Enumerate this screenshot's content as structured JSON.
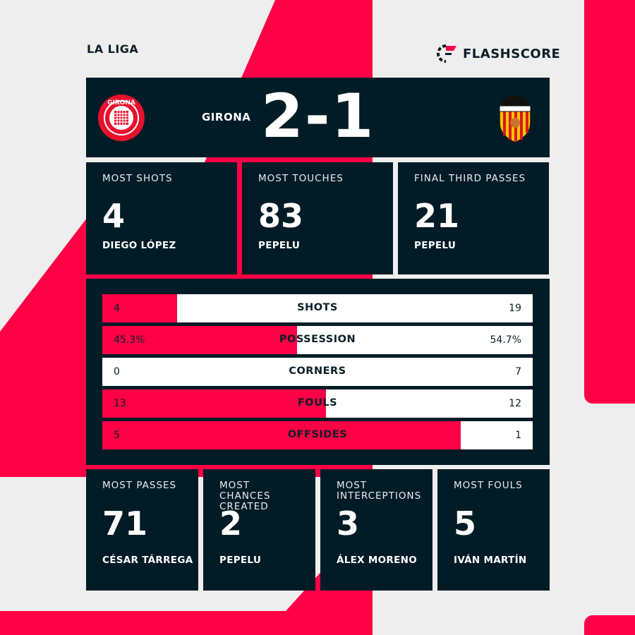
{
  "league": "LA LIGA",
  "brand": {
    "name": "FLASHSCORE",
    "icon": "flashscore-logo-icon"
  },
  "colors": {
    "accent": "#ff0046",
    "panel": "#021c27",
    "background": "#eeeeee"
  },
  "match": {
    "home_team": "GIRONA",
    "score": "2-1",
    "home_crest": "girona-crest-icon",
    "away_crest": "valencia-crest-icon",
    "home_crest_text": "GIRONA FUTBOL CLUB",
    "away_crest_text": "VALENCIA C.F."
  },
  "top_stats": [
    {
      "label": "MOST SHOTS",
      "value": "4",
      "player": "DIEGO LÓPEZ"
    },
    {
      "label": "MOST TOUCHES",
      "value": "83",
      "player": "PEPELU"
    },
    {
      "label": "FINAL THIRD PASSES",
      "value": "21",
      "player": "PEPELU"
    }
  ],
  "comparison": [
    {
      "label": "SHOTS",
      "home": "4",
      "away": "19",
      "home_share": 17.4
    },
    {
      "label": "POSSESSION",
      "home": "45.3%",
      "away": "54.7%",
      "home_share": 45.3
    },
    {
      "label": "CORNERS",
      "home": "0",
      "away": "7",
      "home_share": 0
    },
    {
      "label": "FOULS",
      "home": "13",
      "away": "12",
      "home_share": 52
    },
    {
      "label": "OFFSIDES",
      "home": "5",
      "away": "1",
      "home_share": 83.3
    }
  ],
  "bottom_stats": [
    {
      "label": "MOST PASSES",
      "value": "71",
      "player": "CÉSAR TÁRREGA"
    },
    {
      "label": "MOST CHANCES CREATED",
      "value": "2",
      "player": "PEPELU"
    },
    {
      "label": "MOST INTERCEPTIONS",
      "value": "3",
      "player": "ÁLEX MORENO"
    },
    {
      "label": "MOST FOULS",
      "value": "5",
      "player": "IVÁN MARTÍN"
    }
  ]
}
